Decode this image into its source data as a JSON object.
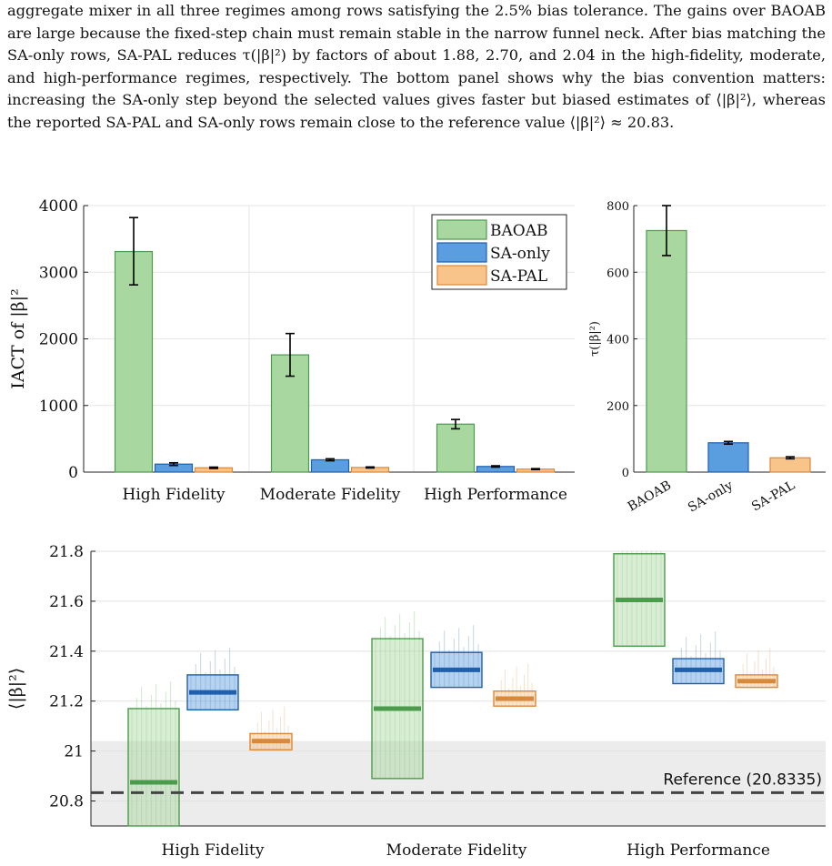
{
  "paragraph": "aggregate mixer in all three regimes among rows satisfying the 2.5% bias tolerance. The gains over BAOAB are large because the fixed-step chain must remain stable in the narrow funnel neck. After bias matching the SA-only rows, SA-PAL reduces τ(|β|²) by factors of about 1.88, 2.70, and 2.04 in the high-fidelity, moderate, and high-performance regimes, respectively. The bottom panel shows why the bias convention matters: increasing the SA-only step beyond the selected values gives faster but biased estimates of ⟨|β|²⟩, whereas the reported SA-PAL and SA-only rows remain close to the reference value ⟨|β|²⟩ ≈ 20.83.",
  "colors": {
    "BAOAB": "#a8d8a0",
    "BAOAB_edge": "#4c9a4c",
    "SA-only": "#5a9ee0",
    "SA-only_edge": "#1f5fad",
    "SA-PAL": "#f8c48a",
    "SA-PAL_edge": "#d9893a",
    "reference_band": "#ececec",
    "reference_line": "#444444"
  },
  "chart_data": [
    {
      "type": "bar",
      "title": "",
      "xlabel": "",
      "ylabel": "IACT of |β|²",
      "ylim": [
        0,
        4000
      ],
      "yticks": [
        "0",
        "1000",
        "2000",
        "3000",
        "4000"
      ],
      "grid": true,
      "legend": "top-right",
      "categories": [
        "High Fidelity",
        "Moderate Fidelity",
        "High Performance"
      ],
      "series": [
        {
          "name": "BAOAB",
          "values": [
            3310,
            1760,
            720
          ],
          "err_low": [
            2810,
            1440,
            650
          ],
          "err_high": [
            3820,
            2080,
            790
          ]
        },
        {
          "name": "SA-only",
          "values": [
            120,
            185,
            85
          ],
          "err_low": [
            100,
            170,
            75
          ],
          "err_high": [
            140,
            200,
            95
          ]
        },
        {
          "name": "SA-PAL",
          "values": [
            65,
            70,
            45
          ],
          "err_low": [
            55,
            62,
            38
          ],
          "err_high": [
            75,
            78,
            52
          ]
        }
      ]
    },
    {
      "type": "bar",
      "title": "",
      "xlabel": "",
      "ylabel": "τ(|β|²)",
      "ylim": [
        0,
        800
      ],
      "yticks": [
        "0",
        "200",
        "400",
        "600",
        "800"
      ],
      "grid": true,
      "categories": [
        "BAOAB",
        "SA-only",
        "SA-PAL"
      ],
      "values": [
        725,
        88,
        43
      ],
      "err_low": [
        650,
        84,
        40
      ],
      "err_high": [
        800,
        92,
        46
      ]
    },
    {
      "type": "box",
      "title": "",
      "xlabel": "",
      "ylabel": "⟨|β|²⟩",
      "ylim": [
        20.7,
        21.8
      ],
      "yticks": [
        "20.8",
        "21",
        "21.2",
        "21.4",
        "21.6",
        "21.8"
      ],
      "grid": true,
      "categories": [
        "High Fidelity",
        "Moderate Fidelity",
        "High Performance"
      ],
      "reference": {
        "value": 20.8335,
        "label": "Reference (20.8335)",
        "band": [
          20.7,
          21.04
        ]
      },
      "series": [
        {
          "name": "BAOAB",
          "boxes": [
            {
              "low": 20.68,
              "high": 21.17,
              "mid": 20.875
            },
            {
              "low": 20.89,
              "high": 21.45,
              "mid": 21.17
            },
            {
              "low": 21.42,
              "high": 21.79,
              "mid": 21.605
            }
          ]
        },
        {
          "name": "SA-only",
          "boxes": [
            {
              "low": 21.165,
              "high": 21.305,
              "mid": 21.235
            },
            {
              "low": 21.255,
              "high": 21.395,
              "mid": 21.325
            },
            {
              "low": 21.27,
              "high": 21.37,
              "mid": 21.325
            }
          ]
        },
        {
          "name": "SA-PAL",
          "boxes": [
            {
              "low": 21.005,
              "high": 21.07,
              "mid": 21.04
            },
            {
              "low": 21.18,
              "high": 21.24,
              "mid": 21.21
            },
            {
              "low": 21.255,
              "high": 21.305,
              "mid": 21.28
            }
          ]
        }
      ]
    }
  ]
}
